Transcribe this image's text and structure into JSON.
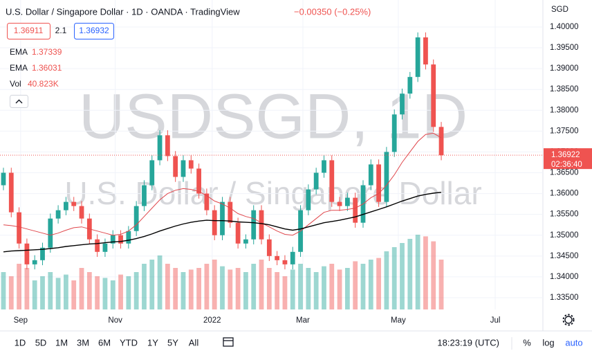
{
  "header": {
    "title": "U.S. Dollar / Singapore Dollar · 1D · OANDA · TradingView",
    "change": "−0.00350 (−0.25%)",
    "bid": "1.36911",
    "spread": "2.1",
    "ask": "1.36932",
    "currency": "SGD"
  },
  "chart_data": {
    "type": "candlestick",
    "watermark": "USDSGD, 1D",
    "watermark_sub": "U.S. Dollar / Singapore Dollar",
    "up_color": "#26a69a",
    "down_color": "#ef5350",
    "ylim": [
      1.33217,
      1.40648
    ],
    "yticks": [
      {
        "value": 1.335,
        "label": "1.33500"
      },
      {
        "value": 1.34,
        "label": "1.34000"
      },
      {
        "value": 1.345,
        "label": "1.34500"
      },
      {
        "value": 1.35,
        "label": "1.35000"
      },
      {
        "value": 1.355,
        "label": "1.35500"
      },
      {
        "value": 1.36,
        "label": "1.36000"
      },
      {
        "value": 1.365,
        "label": "1.36500"
      },
      {
        "value": 1.37,
        "label": "1.37000"
      },
      {
        "value": 1.375,
        "label": "1.37500"
      },
      {
        "value": 1.38,
        "label": "1.38000"
      },
      {
        "value": 1.385,
        "label": "1.38500"
      },
      {
        "value": 1.39,
        "label": "1.39000"
      },
      {
        "value": 1.395,
        "label": "1.39500"
      },
      {
        "value": 1.4,
        "label": "1.40000"
      }
    ],
    "xlim": [
      -0.44,
      69.0
    ],
    "xticks": [
      {
        "value": 2.2,
        "label": "Sep"
      },
      {
        "value": 14.3,
        "label": "Nov"
      },
      {
        "value": 26.7,
        "label": "2022"
      },
      {
        "value": 38.3,
        "label": "Mar"
      },
      {
        "value": 50.5,
        "label": "May"
      },
      {
        "value": 62.9,
        "label": "Jul"
      }
    ],
    "candles": [
      [
        1.362,
        1.3662,
        1.3608,
        1.365
      ],
      [
        1.365,
        1.3662,
        1.3543,
        1.3555
      ],
      [
        1.3555,
        1.3567,
        1.3468,
        1.348
      ],
      [
        1.348,
        1.3492,
        1.3418,
        1.343
      ],
      [
        1.343,
        1.3452,
        1.3418,
        1.344
      ],
      [
        1.344,
        1.3482,
        1.3428,
        1.347
      ],
      [
        1.347,
        1.3552,
        1.3458,
        1.354
      ],
      [
        1.354,
        1.3572,
        1.3528,
        1.356
      ],
      [
        1.356,
        1.3592,
        1.3548,
        1.358
      ],
      [
        1.358,
        1.3592,
        1.3558,
        1.357
      ],
      [
        1.357,
        1.3582,
        1.3528,
        1.354
      ],
      [
        1.354,
        1.3552,
        1.3478,
        1.349
      ],
      [
        1.349,
        1.3502,
        1.3448,
        1.346
      ],
      [
        1.346,
        1.3492,
        1.3448,
        1.348
      ],
      [
        1.348,
        1.3512,
        1.3468,
        1.35
      ],
      [
        1.35,
        1.3512,
        1.3468,
        1.348
      ],
      [
        1.348,
        1.3522,
        1.3468,
        1.351
      ],
      [
        1.351,
        1.3582,
        1.3498,
        1.357
      ],
      [
        1.357,
        1.3632,
        1.3558,
        1.362
      ],
      [
        1.362,
        1.3692,
        1.3608,
        1.368
      ],
      [
        1.368,
        1.3752,
        1.3668,
        1.374
      ],
      [
        1.374,
        1.3752,
        1.3678,
        1.369
      ],
      [
        1.369,
        1.3702,
        1.3628,
        1.364
      ],
      [
        1.364,
        1.3692,
        1.3628,
        1.368
      ],
      [
        1.368,
        1.3692,
        1.3648,
        1.366
      ],
      [
        1.366,
        1.3672,
        1.3588,
        1.36
      ],
      [
        1.36,
        1.3612,
        1.3548,
        1.356
      ],
      [
        1.356,
        1.3572,
        1.3488,
        1.35
      ],
      [
        1.35,
        1.3592,
        1.3488,
        1.358
      ],
      [
        1.358,
        1.3592,
        1.3518,
        1.353
      ],
      [
        1.353,
        1.3542,
        1.3468,
        1.348
      ],
      [
        1.348,
        1.3502,
        1.3468,
        1.349
      ],
      [
        1.349,
        1.3572,
        1.3478,
        1.356
      ],
      [
        1.356,
        1.3572,
        1.3478,
        1.349
      ],
      [
        1.349,
        1.3502,
        1.3438,
        1.345
      ],
      [
        1.345,
        1.3462,
        1.3428,
        1.344
      ],
      [
        1.344,
        1.3452,
        1.3418,
        1.343
      ],
      [
        1.343,
        1.3472,
        1.3418,
        1.346
      ],
      [
        1.346,
        1.3572,
        1.3448,
        1.356
      ],
      [
        1.356,
        1.3622,
        1.3548,
        1.361
      ],
      [
        1.361,
        1.3662,
        1.3598,
        1.365
      ],
      [
        1.365,
        1.3692,
        1.3638,
        1.368
      ],
      [
        1.368,
        1.3692,
        1.3568,
        1.358
      ],
      [
        1.358,
        1.3592,
        1.3558,
        1.357
      ],
      [
        1.357,
        1.3602,
        1.3558,
        1.359
      ],
      [
        1.359,
        1.3602,
        1.3518,
        1.353
      ],
      [
        1.353,
        1.3632,
        1.3518,
        1.362
      ],
      [
        1.362,
        1.3682,
        1.3608,
        1.367
      ],
      [
        1.367,
        1.3682,
        1.3568,
        1.358
      ],
      [
        1.358,
        1.3712,
        1.3568,
        1.37
      ],
      [
        1.37,
        1.3802,
        1.3688,
        1.379
      ],
      [
        1.379,
        1.3852,
        1.3778,
        1.384
      ],
      [
        1.384,
        1.3892,
        1.3828,
        1.388
      ],
      [
        1.388,
        1.3987,
        1.3868,
        1.3975
      ],
      [
        1.3975,
        1.3987,
        1.3898,
        1.391
      ],
      [
        1.391,
        1.3922,
        1.3748,
        1.376
      ],
      [
        1.376,
        1.3772,
        1.368,
        1.3692
      ]
    ],
    "volume_name": "Vol",
    "volume_label": "40.823K",
    "vlim": [
      0,
      100
    ],
    "volumes": [
      45,
      40,
      55,
      50,
      35,
      40,
      45,
      38,
      42,
      35,
      50,
      45,
      40,
      38,
      35,
      42,
      40,
      45,
      55,
      60,
      65,
      55,
      50,
      45,
      48,
      50,
      55,
      60,
      52,
      48,
      50,
      45,
      55,
      60,
      50,
      45,
      40,
      48,
      55,
      50,
      45,
      52,
      55,
      48,
      50,
      58,
      55,
      60,
      62,
      70,
      75,
      80,
      85,
      90,
      88,
      82,
      60
    ],
    "series": [
      {
        "name": "EMA",
        "color": "#e0474c",
        "last_label": "1.37339",
        "values": [
          1.3525,
          1.3523,
          1.352,
          1.3515,
          1.351,
          1.3505,
          1.35,
          1.3505,
          1.3512,
          1.3518,
          1.352,
          1.3515,
          1.351,
          1.3505,
          1.35,
          1.3502,
          1.351,
          1.3525,
          1.3545,
          1.3565,
          1.3585,
          1.36,
          1.3608,
          1.3612,
          1.361,
          1.3605,
          1.3595,
          1.3582,
          1.3575,
          1.3565,
          1.3552,
          1.3545,
          1.354,
          1.353,
          1.352,
          1.351,
          1.3502,
          1.35,
          1.351,
          1.3525,
          1.354,
          1.3555,
          1.356,
          1.356,
          1.3562,
          1.3565,
          1.3575,
          1.359,
          1.36,
          1.362,
          1.3645,
          1.3675,
          1.37,
          1.3725,
          1.3742,
          1.3745,
          1.3734
        ]
      },
      {
        "name": "EMA",
        "color": "#000000",
        "last_label": "1.36031",
        "values": [
          1.346,
          1.3462,
          1.3463,
          1.3464,
          1.3465,
          1.3466,
          1.3468,
          1.347,
          1.3473,
          1.3475,
          1.3477,
          1.3479,
          1.348,
          1.3482,
          1.3484,
          1.3485,
          1.3488,
          1.3492,
          1.3497,
          1.3503,
          1.351,
          1.3516,
          1.3522,
          1.3527,
          1.3531,
          1.3534,
          1.3536,
          1.3535,
          1.3535,
          1.3534,
          1.3532,
          1.3531,
          1.353,
          1.3528,
          1.3525,
          1.352,
          1.3515,
          1.3512,
          1.3515,
          1.352,
          1.3525,
          1.353,
          1.3533,
          1.3536,
          1.354,
          1.3544,
          1.355,
          1.3556,
          1.3562,
          1.3568,
          1.3575,
          1.3582,
          1.3588,
          1.3594,
          1.3598,
          1.3601,
          1.3603
        ]
      }
    ],
    "last_price": 1.36922,
    "countdown": "02:36:40"
  },
  "toolbar": {
    "ranges": [
      "1D",
      "5D",
      "1M",
      "3M",
      "6M",
      "YTD",
      "1Y",
      "5Y",
      "All"
    ],
    "clock": "18:23:19 (UTC)",
    "percent": "%",
    "log": "log",
    "auto": "auto"
  }
}
